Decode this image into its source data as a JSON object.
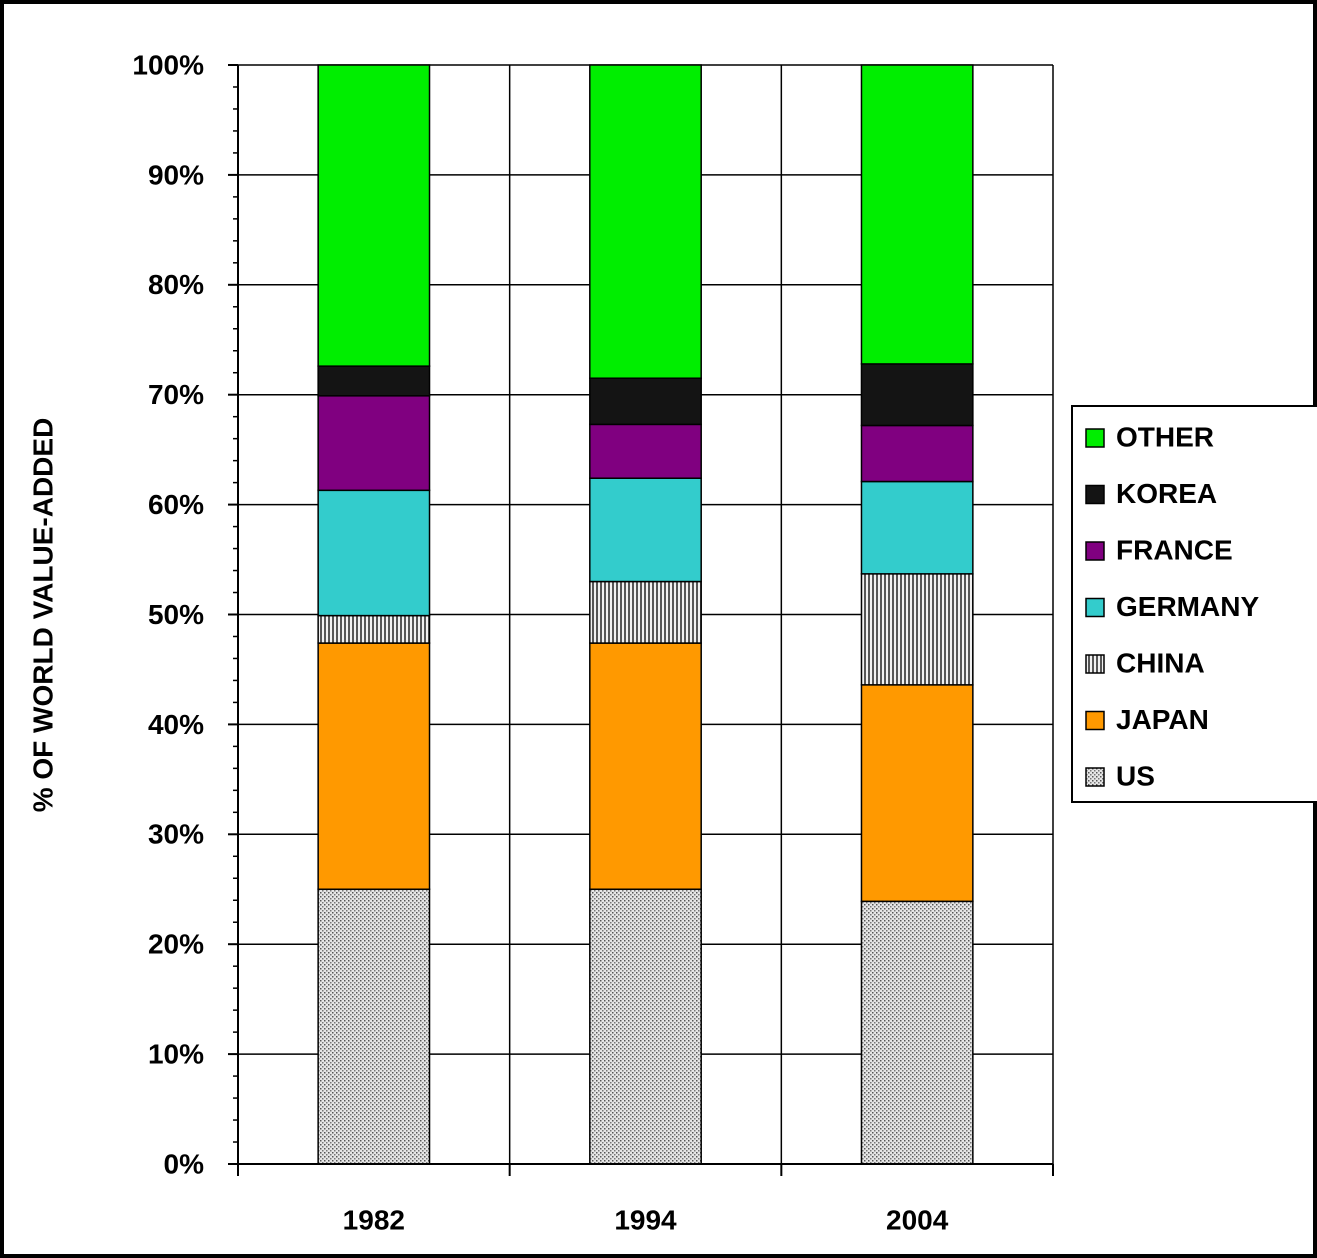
{
  "chart_data": {
    "type": "stacked_bar",
    "y_label": "% OF WORLD VALUE-ADDED",
    "categories": [
      "1982",
      "1994",
      "2004"
    ],
    "series": [
      {
        "name": "US",
        "color": "#b4b4b4",
        "pattern": "dots",
        "values": [
          25.0,
          25.0,
          23.9
        ]
      },
      {
        "name": "JAPAN",
        "color": "#ff9900",
        "values": [
          22.4,
          22.4,
          19.7
        ]
      },
      {
        "name": "CHINA",
        "color": "#a0a0a0",
        "pattern": "stripes",
        "values": [
          2.5,
          5.6,
          10.1
        ]
      },
      {
        "name": "GERMANY",
        "color": "#33cccc",
        "values": [
          11.4,
          9.4,
          8.4
        ]
      },
      {
        "name": "FRANCE",
        "color": "#800080",
        "values": [
          8.6,
          4.9,
          5.1
        ]
      },
      {
        "name": "KOREA",
        "color": "#141414",
        "values": [
          2.7,
          4.2,
          5.6
        ]
      },
      {
        "name": "OTHER",
        "color": "#00ee00",
        "values": [
          27.4,
          28.5,
          27.2
        ]
      }
    ],
    "ylim": [
      0,
      100
    ],
    "yticks": [
      {
        "value": 0,
        "label": "0%"
      },
      {
        "value": 10,
        "label": "10%"
      },
      {
        "value": 20,
        "label": "20%"
      },
      {
        "value": 30,
        "label": "30%"
      },
      {
        "value": 40,
        "label": "40%"
      },
      {
        "value": 50,
        "label": "50%"
      },
      {
        "value": 60,
        "label": "60%"
      },
      {
        "value": 70,
        "label": "70%"
      },
      {
        "value": 80,
        "label": "80%"
      },
      {
        "value": 90,
        "label": "90%"
      },
      {
        "value": 100,
        "label": "100%"
      }
    ],
    "y_minor_ticks_per_major": 5,
    "grid": true,
    "legend": "right"
  }
}
